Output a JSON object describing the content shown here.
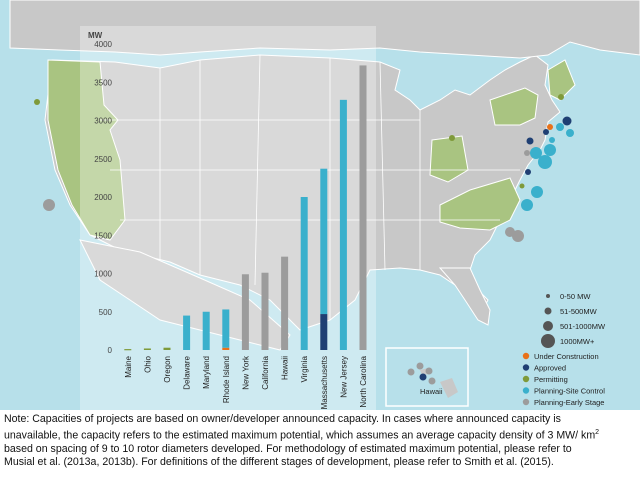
{
  "chart_data": {
    "type": "bar",
    "stacked": true,
    "ylabel": "MW",
    "ylim": [
      0,
      4000
    ],
    "yticks": [
      0,
      500,
      1000,
      1500,
      2000,
      2500,
      3000,
      3500,
      4000
    ],
    "categories": [
      "Maine",
      "Ohio",
      "Oregon",
      "Delaware",
      "Maryland",
      "Rhode Island",
      "New York",
      "California",
      "Hawaii",
      "Virginia",
      "Massachusetts",
      "New Jersey",
      "North Carolina"
    ],
    "series": [
      {
        "name": "Under Construction",
        "color": "#e8711a",
        "values": [
          0,
          0,
          0,
          0,
          0,
          30,
          0,
          0,
          0,
          0,
          0,
          0,
          0
        ]
      },
      {
        "name": "Approved",
        "color": "#1f3f73",
        "values": [
          0,
          0,
          0,
          0,
          0,
          0,
          0,
          0,
          0,
          0,
          470,
          0,
          0
        ]
      },
      {
        "name": "Permitting",
        "color": "#7f9a3a",
        "values": [
          12,
          20,
          30,
          0,
          0,
          0,
          0,
          0,
          0,
          0,
          0,
          0,
          0
        ]
      },
      {
        "name": "Planning-Site Control",
        "color": "#3ab0cc",
        "values": [
          0,
          0,
          0,
          450,
          500,
          500,
          0,
          0,
          0,
          2000,
          1900,
          3270,
          0
        ]
      },
      {
        "name": "Planning-Early Stage",
        "color": "#9c9c9c",
        "values": [
          0,
          0,
          0,
          0,
          0,
          0,
          990,
          1010,
          1220,
          0,
          0,
          0,
          3720
        ]
      }
    ],
    "legend": {
      "placement": "bottom-right",
      "sizes": [
        "0-50 MW",
        "51-500MW",
        "501-1000MW",
        "1000MW+"
      ],
      "stages": [
        {
          "label": "Under Construction",
          "color": "#e8711a"
        },
        {
          "label": "Approved",
          "color": "#1f3f73"
        },
        {
          "label": "Permitting",
          "color": "#7f9a3a"
        },
        {
          "label": "Planning-Site Control",
          "color": "#3ab0cc"
        },
        {
          "label": "Planning-Early Stage",
          "color": "#9c9c9c"
        }
      ]
    },
    "inset_label": "Hawaii"
  },
  "note": {
    "line1": "Note: Capacities of projects are based on owner/developer announced capacity. In cases where announced capacity is",
    "line2a": "unavailable, the capacity refers to the estimated maximum potential, which assumes an average capacity density of 3 MW/ km",
    "line2sup": "2",
    "line3": "based on spacing of 9 to 10 rotor diameters developed. For methodology of estimated maximum potential, please refer to",
    "line4": "Musial et al. (2013a, 2013b). For definitions of the different stages of development, please refer to Smith et al. (2015)."
  },
  "colors": {
    "ocean": "#b7e0ea",
    "land": "#c8c8c8",
    "highlight_state": "#a9c481",
    "panel": "#ffffff"
  }
}
